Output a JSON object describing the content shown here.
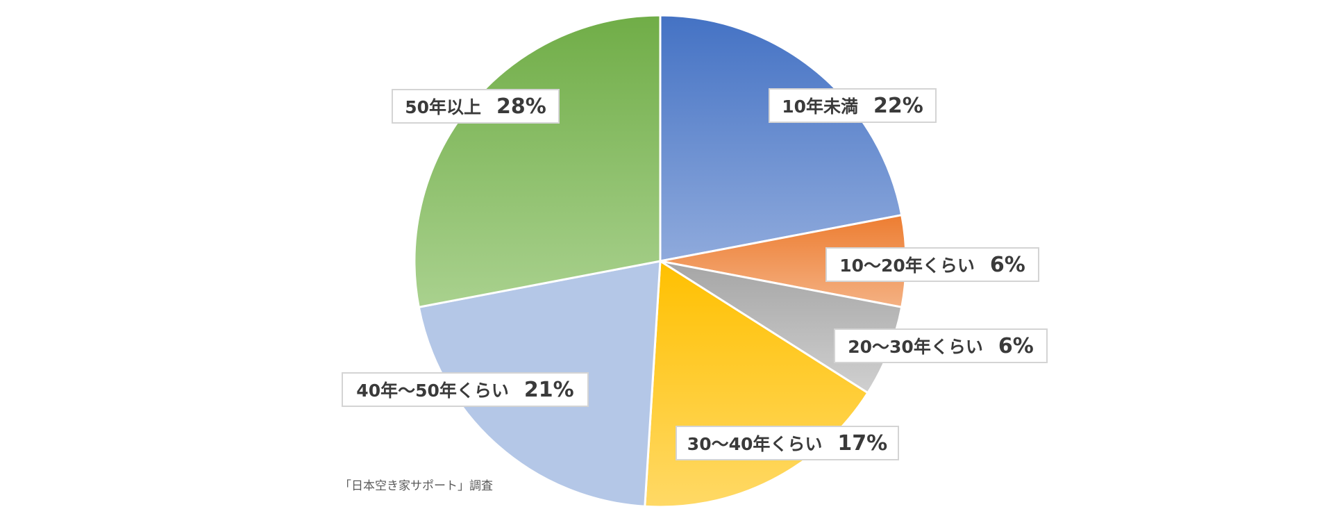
{
  "chart_data": {
    "type": "pie",
    "title": "",
    "start_angle": "12 o'clock",
    "direction": "clockwise",
    "slices": [
      {
        "label": "10年未満",
        "value": 22,
        "display": "22%",
        "color": "#4472c4",
        "color_light": "#8faadc"
      },
      {
        "label": "10〜20年くらい",
        "value": 6,
        "display": "6%",
        "color": "#ed7d31",
        "color_light": "#f4b183"
      },
      {
        "label": "20〜30年くらい",
        "value": 6,
        "display": "6%",
        "color": "#a5a5a5",
        "color_light": "#d0d0d0"
      },
      {
        "label": "30〜40年くらい",
        "value": 17,
        "display": "17%",
        "color": "#ffc000",
        "color_light": "#ffd966"
      },
      {
        "label": "40年〜50年くらい",
        "value": 21,
        "display": "21%",
        "color": "#b4c7e7",
        "color_light": "#b4c7e7"
      },
      {
        "label": "50年以上",
        "value": 28,
        "display": "28%",
        "color": "#70ad47",
        "color_light": "#a9d18e"
      }
    ],
    "source_note": "「日本空き家サポート」調査",
    "legend": "none"
  }
}
